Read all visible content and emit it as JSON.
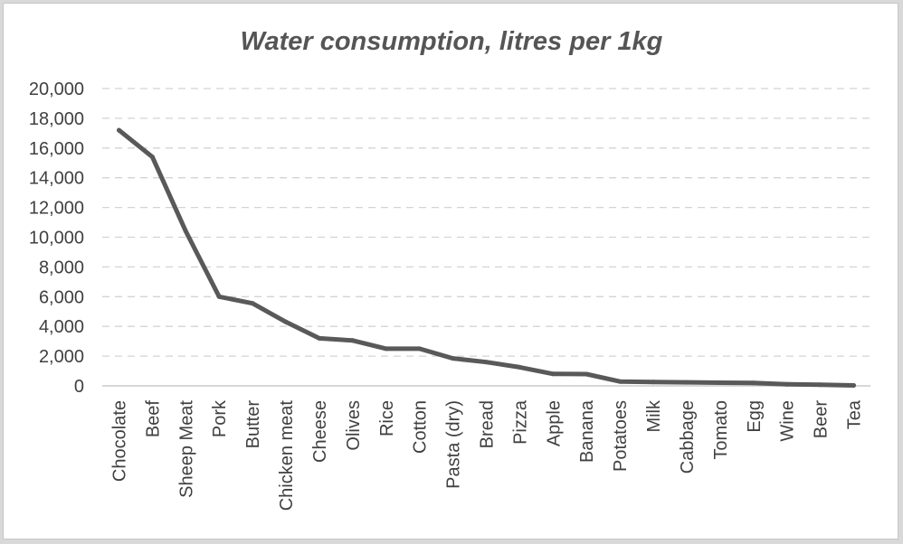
{
  "chart_data": {
    "type": "line",
    "title": "Water consumption, litres per 1kg",
    "xlabel": "",
    "ylabel": "",
    "ylim": [
      0,
      20000
    ],
    "yticks": [
      0,
      2000,
      4000,
      6000,
      8000,
      10000,
      12000,
      14000,
      16000,
      18000,
      20000
    ],
    "ytick_labels": [
      "0",
      "2,000",
      "4,000",
      "6,000",
      "8,000",
      "10,000",
      "12,000",
      "14,000",
      "16,000",
      "18,000",
      "20,000"
    ],
    "categories": [
      "Chocolate",
      "Beef",
      "Sheep Meat",
      "Pork",
      "Butter",
      "Chicken meat",
      "Cheese",
      "Olives",
      "Rice",
      "Cotton",
      "Pasta (dry)",
      "Bread",
      "Pizza",
      "Apple",
      "Banana",
      "Potatoes",
      "Milk",
      "Cabbage",
      "Tomato",
      "Egg",
      "Wine",
      "Beer",
      "Tea"
    ],
    "series": [
      {
        "name": "Water consumption",
        "values": [
          17200,
          15400,
          10400,
          6000,
          5550,
          4300,
          3200,
          3050,
          2500,
          2500,
          1850,
          1600,
          1250,
          800,
          790,
          290,
          255,
          240,
          210,
          195,
          110,
          70,
          30
        ]
      }
    ],
    "grid": true,
    "legend": "none",
    "colors": {
      "line": "#595959",
      "grid": "#d4d4d4",
      "text": "#404040",
      "title": "#555555"
    }
  }
}
